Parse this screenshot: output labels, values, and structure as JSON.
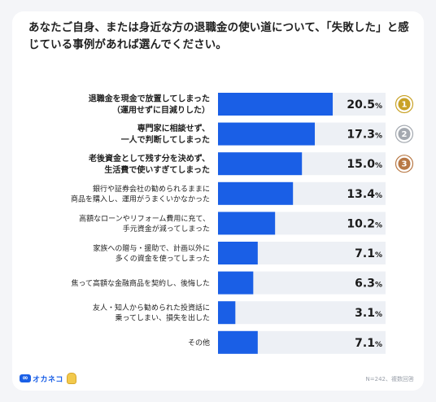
{
  "title": "あなたご自身、または身近な方の退職金の使い道について、「失敗した」と感じている事例があれば選んでください。",
  "footnote": "N=242、複数回答",
  "logo_text": "オカネコ",
  "colors": {
    "bar": "#1a5fe6",
    "track": "#edf0f5",
    "gold": "#c9a227",
    "silver": "#a4a9b0",
    "bronze": "#b87845"
  },
  "chart_data": {
    "type": "bar",
    "orientation": "horizontal",
    "xlim": [
      0,
      25
    ],
    "unit": "%",
    "categories": [
      [
        "退職金を現金で放置してしまった",
        "（運用せずに目減りした）"
      ],
      [
        "専門家に相談せず、",
        "一人で判断してしまった"
      ],
      [
        "老後資金として残す分を決めず、",
        "生活費で使いすぎてしまった"
      ],
      [
        "銀行や証券会社の勧められるままに",
        "商品を購入し、運用がうまくいかなかった"
      ],
      [
        "高額なローンやリフォーム費用に充て、",
        "手元資金が減ってしまった"
      ],
      [
        "家族への贈与・援助で、計画以外に",
        "多くの資金を使ってしまった"
      ],
      [
        "焦って高額な金融商品を契約し、後悔した"
      ],
      [
        "友人・知人から勧められた投資話に",
        "乗ってしまい、損失を出した"
      ],
      [
        "その他"
      ]
    ],
    "values": [
      20.5,
      17.3,
      15.0,
      13.4,
      10.2,
      7.1,
      6.3,
      3.1,
      7.1
    ],
    "value_labels": [
      "20.5",
      "17.3",
      "15.0",
      "13.4",
      "10.2",
      "7.1",
      "6.3",
      "3.1",
      "7.1"
    ],
    "ranks": [
      "1",
      "2",
      "3"
    ]
  }
}
